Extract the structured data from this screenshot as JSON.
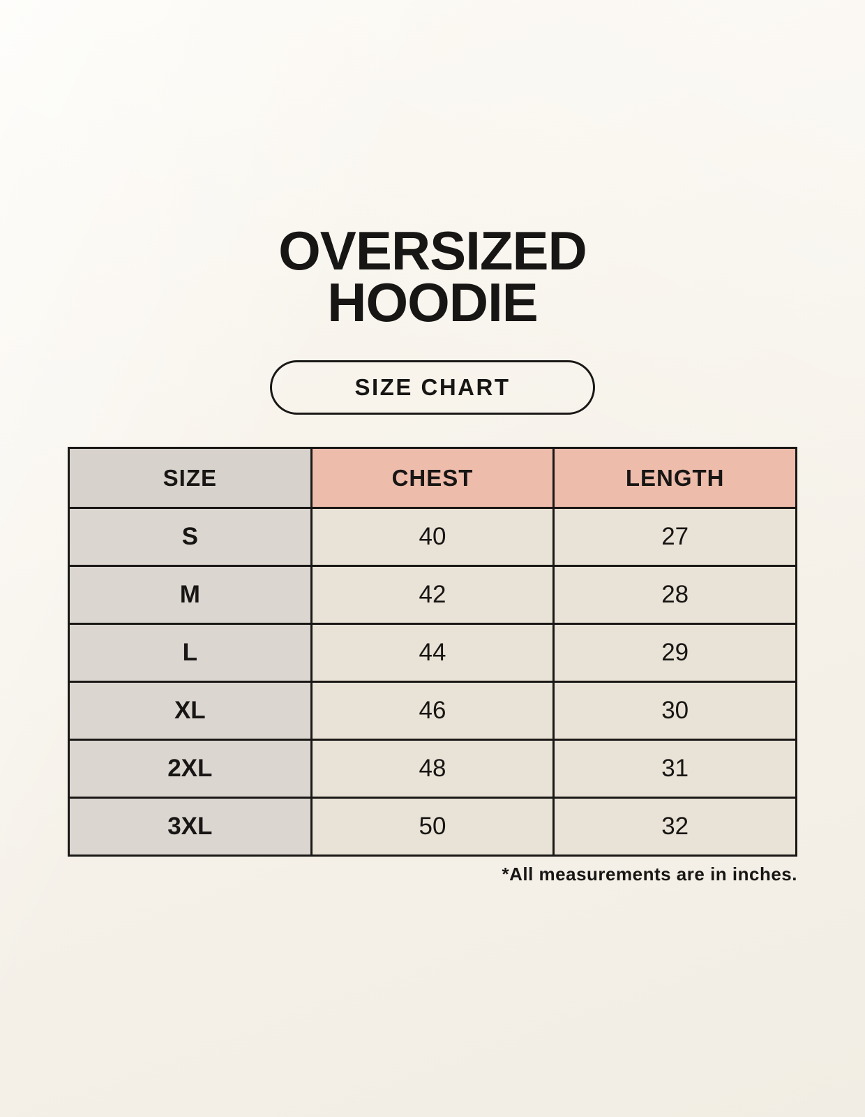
{
  "header": {
    "title_line1": "OVERSIZED",
    "title_line2": "HOODIE",
    "badge_label": "SIZE CHART"
  },
  "footer": {
    "note": "*All measurements are in inches."
  },
  "colors": {
    "page_background": "#f6f2ea",
    "size_column_header_bg": "#d8d2cc",
    "size_column_cell_bg": "#dcd6d0",
    "accent_header_bg": "#edbcab",
    "value_cell_bg": "#e9e2d6",
    "table_border": "#1a1816",
    "text": "#181614"
  },
  "chart_data": {
    "type": "table",
    "title": "OVERSIZED HOODIE",
    "subtitle": "SIZE CHART",
    "columns": [
      "SIZE",
      "CHEST",
      "LENGTH"
    ],
    "rows": [
      [
        "S",
        40,
        27
      ],
      [
        "M",
        42,
        28
      ],
      [
        "L",
        44,
        29
      ],
      [
        "XL",
        46,
        30
      ],
      [
        "2XL",
        48,
        31
      ],
      [
        "3XL",
        50,
        32
      ]
    ],
    "units": "inches",
    "note": "*All measurements are in inches."
  }
}
